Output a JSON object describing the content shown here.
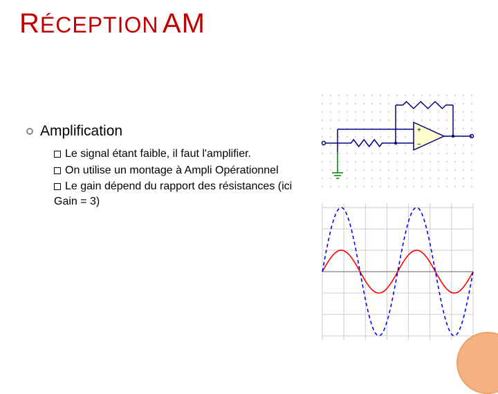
{
  "title": {
    "word1_cap": "R",
    "word1_rest": "ÉCEPTION",
    "word2": "AM"
  },
  "heading": "Amplification",
  "bullets": [
    "Le signal étant faible, il faut l'amplifier.",
    "On utilise un montage à Ampli Opérationnel",
    "Le gain dépend du rapport des résistances (ici Gain = 3)"
  ],
  "circuit": {
    "grid_color": "#b8b8b8",
    "wire_color": "#000080",
    "bg": "#ffffff",
    "dot_spacing": 12,
    "tri_fill": "#ffffd0",
    "tri_stroke": "#000080",
    "res_stroke": "#000080",
    "gnd_color": "#008000"
  },
  "wave": {
    "bg": "#ffffff",
    "grid_color": "#cccccc",
    "axis_color": "#808080",
    "xrange": [
      0,
      6.2832
    ],
    "yrange": [
      -3.2,
      3.2
    ],
    "curves": [
      {
        "color": "#ff0000",
        "amp": 1,
        "dash": "",
        "width": 1.6
      },
      {
        "color": "#0000ff",
        "amp": 3,
        "dash": "5 4",
        "width": 1.6
      }
    ],
    "xgrid_step": 0.8976,
    "ygrid_step": 1
  },
  "corner_circle_color": "#f4b183"
}
